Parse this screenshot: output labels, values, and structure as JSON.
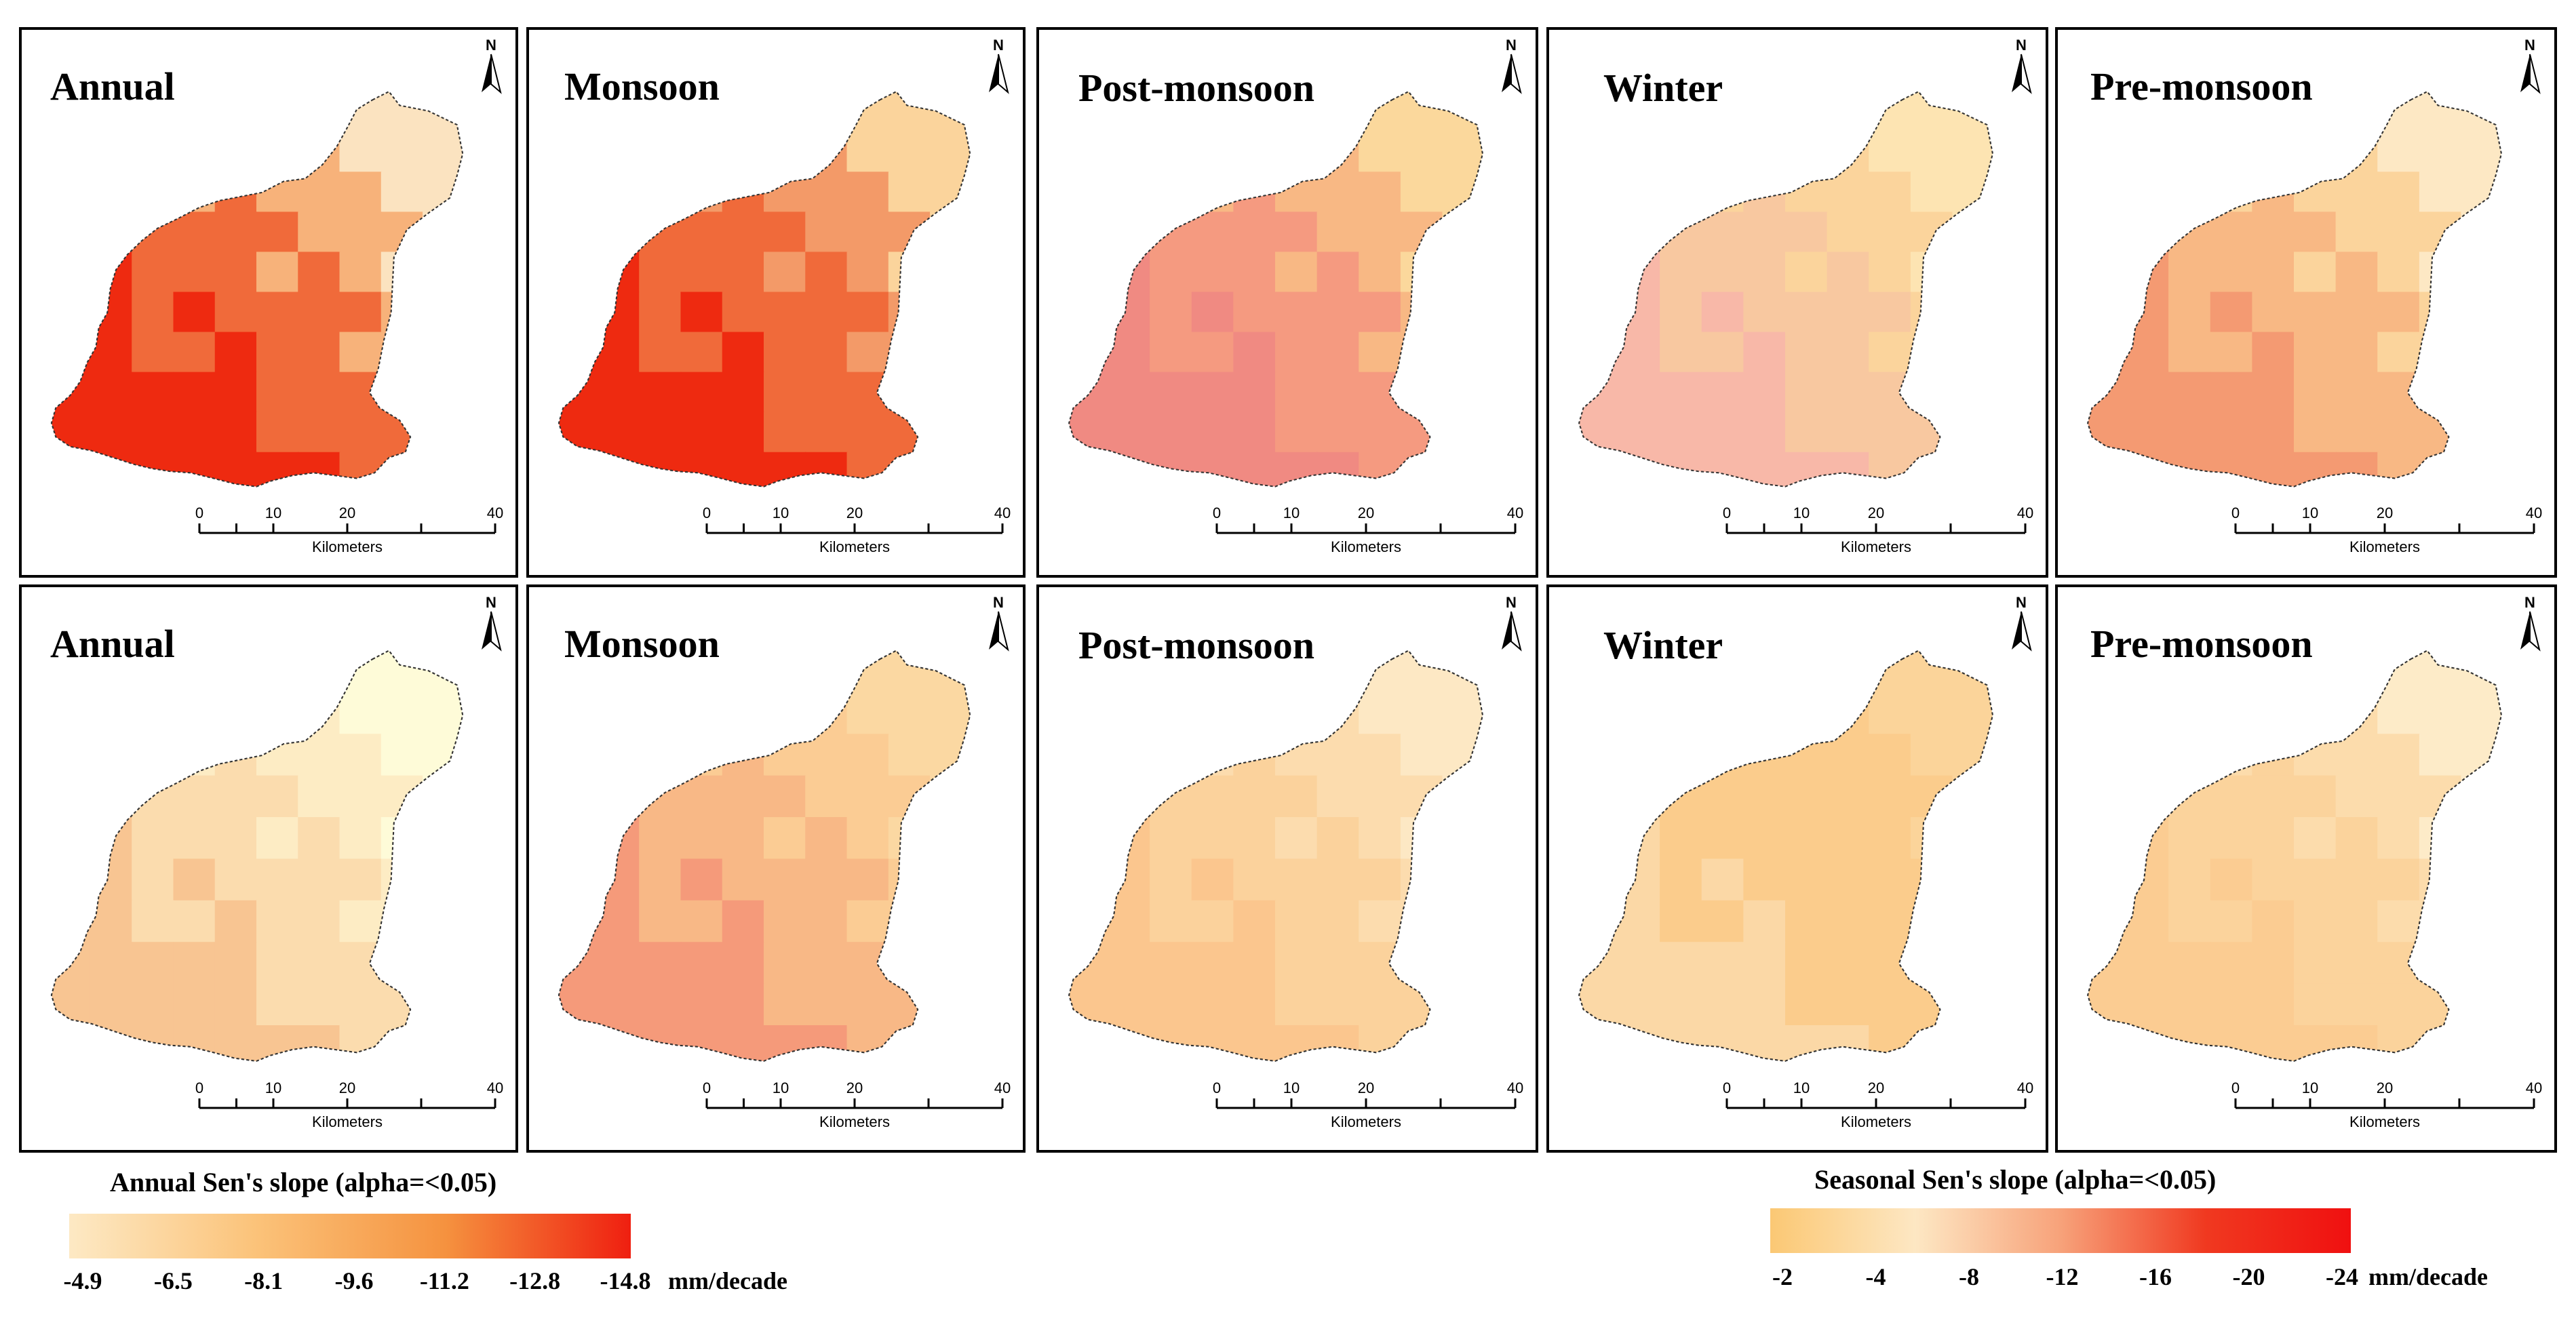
{
  "figure": {
    "rows": [
      {
        "row": "top",
        "panels": [
          {
            "title": "Annual",
            "ramp": "annual_top"
          },
          {
            "title": "Monsoon",
            "ramp": "monsoon_top"
          },
          {
            "title": "Post-monsoon",
            "ramp": "post_top"
          },
          {
            "title": "Winter",
            "ramp": "winter_top"
          },
          {
            "title": "Pre-monsoon",
            "ramp": "pre_top"
          }
        ]
      },
      {
        "row": "bottom",
        "panels": [
          {
            "title": "Annual",
            "ramp": "annual_bottom"
          },
          {
            "title": "Monsoon",
            "ramp": "monsoon_bottom"
          },
          {
            "title": "Post-monsoon",
            "ramp": "post_bottom"
          },
          {
            "title": "Winter",
            "ramp": "winter_bottom"
          },
          {
            "title": "Pre-monsoon",
            "ramp": "pre_bottom"
          }
        ]
      }
    ],
    "north_label": "N",
    "scalebar": {
      "ticks": [
        "0",
        "10",
        "20",
        "40"
      ],
      "unit": "Kilometers"
    }
  },
  "legends": {
    "annual": {
      "title": "Annual Sen's slope (alpha=<0.05)",
      "labels": [
        "-4.9",
        "-6.5",
        "-8.1",
        "-9.6",
        "-11.2",
        "-12.8",
        "-14.8"
      ],
      "unit": "mm/decade",
      "colors": [
        "#fde9c4",
        "#fbc37a",
        "#f5923f",
        "#ef1f10"
      ]
    },
    "seasonal": {
      "title": "Seasonal Sen's slope (alpha=<0.05)",
      "labels": [
        "-2",
        "-4",
        "-8",
        "-12",
        "-16",
        "-20",
        "-24"
      ],
      "unit": "mm/decade",
      "colors": [
        "#fbc874",
        "#fde7c3",
        "#f7a27a",
        "#f03920",
        "#f01010"
      ]
    }
  },
  "palette": {
    "annual_top": [
      "#fbe3c0",
      "#f7b27a",
      "#f06a3a",
      "#ee2a10"
    ],
    "monsoon_top": [
      "#fbd49c",
      "#f39a68",
      "#f06a3a",
      "#ee2a10"
    ],
    "post_top": [
      "#fbd89c",
      "#f8b884",
      "#f59a80",
      "#f08a82"
    ],
    "winter_top": [
      "#fde4b2",
      "#fbd49c",
      "#f8c8a0",
      "#f8b8a8"
    ],
    "pre_top": [
      "#fde8c4",
      "#fbd49c",
      "#f8b884",
      "#f49a72"
    ],
    "annual_bottom": [
      "#fefbd8",
      "#fdecc4",
      "#fbdcae",
      "#f8c592"
    ],
    "monsoon_bottom": [
      "#fbd8a2",
      "#fbcc94",
      "#f8b886",
      "#f59a7a"
    ],
    "post_bottom": [
      "#fde8c4",
      "#fcdcae",
      "#fbd29c",
      "#fbc68e"
    ],
    "winter_bottom": [
      "#fbd49a",
      "#fbcc8c",
      "#fbcc8c",
      "#fbd8a6"
    ],
    "pre_bottom": [
      "#fdebc8",
      "#fcdcac",
      "#fbd39c",
      "#fbcc92"
    ]
  }
}
